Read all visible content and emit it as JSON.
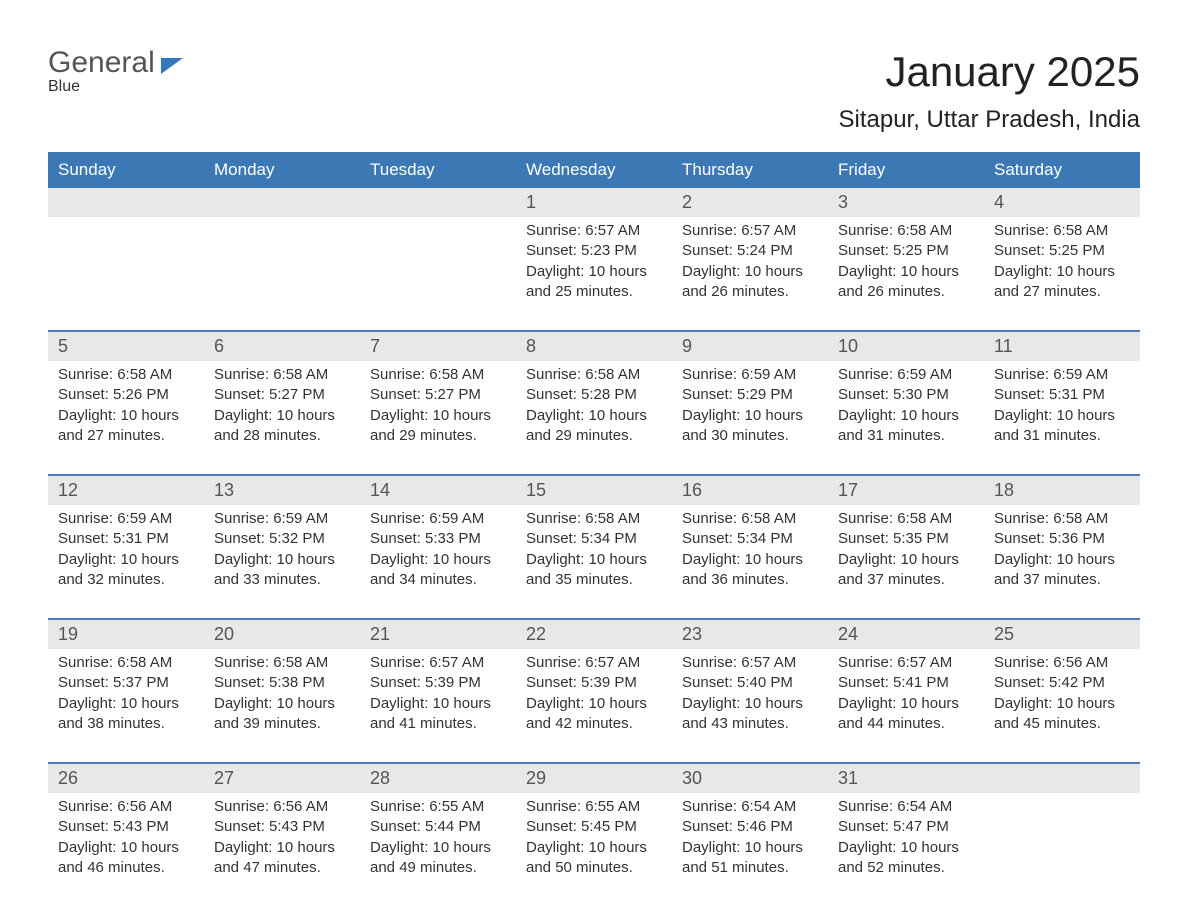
{
  "branding": {
    "logo_word1": "General",
    "logo_word2": "Blue"
  },
  "header": {
    "month_title": "January 2025",
    "location": "Sitapur, Uttar Pradesh, India"
  },
  "colors": {
    "brand_blue": "#3478bd",
    "header_blue": "#3c78b4",
    "divider_blue": "#4a7db8",
    "light_grey": "#e8e8e8",
    "text_dark": "#333333",
    "white": "#ffffff"
  },
  "calendar": {
    "type": "calendar-table",
    "columns": 7,
    "weekdays": [
      "Sunday",
      "Monday",
      "Tuesday",
      "Wednesday",
      "Thursday",
      "Friday",
      "Saturday"
    ],
    "weeks": [
      {
        "days": [
          {
            "num": "",
            "sunrise": "",
            "sunset": "",
            "daylight1": "",
            "daylight2": ""
          },
          {
            "num": "",
            "sunrise": "",
            "sunset": "",
            "daylight1": "",
            "daylight2": ""
          },
          {
            "num": "",
            "sunrise": "",
            "sunset": "",
            "daylight1": "",
            "daylight2": ""
          },
          {
            "num": "1",
            "sunrise": "Sunrise: 6:57 AM",
            "sunset": "Sunset: 5:23 PM",
            "daylight1": "Daylight: 10 hours",
            "daylight2": "and 25 minutes."
          },
          {
            "num": "2",
            "sunrise": "Sunrise: 6:57 AM",
            "sunset": "Sunset: 5:24 PM",
            "daylight1": "Daylight: 10 hours",
            "daylight2": "and 26 minutes."
          },
          {
            "num": "3",
            "sunrise": "Sunrise: 6:58 AM",
            "sunset": "Sunset: 5:25 PM",
            "daylight1": "Daylight: 10 hours",
            "daylight2": "and 26 minutes."
          },
          {
            "num": "4",
            "sunrise": "Sunrise: 6:58 AM",
            "sunset": "Sunset: 5:25 PM",
            "daylight1": "Daylight: 10 hours",
            "daylight2": "and 27 minutes."
          }
        ]
      },
      {
        "days": [
          {
            "num": "5",
            "sunrise": "Sunrise: 6:58 AM",
            "sunset": "Sunset: 5:26 PM",
            "daylight1": "Daylight: 10 hours",
            "daylight2": "and 27 minutes."
          },
          {
            "num": "6",
            "sunrise": "Sunrise: 6:58 AM",
            "sunset": "Sunset: 5:27 PM",
            "daylight1": "Daylight: 10 hours",
            "daylight2": "and 28 minutes."
          },
          {
            "num": "7",
            "sunrise": "Sunrise: 6:58 AM",
            "sunset": "Sunset: 5:27 PM",
            "daylight1": "Daylight: 10 hours",
            "daylight2": "and 29 minutes."
          },
          {
            "num": "8",
            "sunrise": "Sunrise: 6:58 AM",
            "sunset": "Sunset: 5:28 PM",
            "daylight1": "Daylight: 10 hours",
            "daylight2": "and 29 minutes."
          },
          {
            "num": "9",
            "sunrise": "Sunrise: 6:59 AM",
            "sunset": "Sunset: 5:29 PM",
            "daylight1": "Daylight: 10 hours",
            "daylight2": "and 30 minutes."
          },
          {
            "num": "10",
            "sunrise": "Sunrise: 6:59 AM",
            "sunset": "Sunset: 5:30 PM",
            "daylight1": "Daylight: 10 hours",
            "daylight2": "and 31 minutes."
          },
          {
            "num": "11",
            "sunrise": "Sunrise: 6:59 AM",
            "sunset": "Sunset: 5:31 PM",
            "daylight1": "Daylight: 10 hours",
            "daylight2": "and 31 minutes."
          }
        ]
      },
      {
        "days": [
          {
            "num": "12",
            "sunrise": "Sunrise: 6:59 AM",
            "sunset": "Sunset: 5:31 PM",
            "daylight1": "Daylight: 10 hours",
            "daylight2": "and 32 minutes."
          },
          {
            "num": "13",
            "sunrise": "Sunrise: 6:59 AM",
            "sunset": "Sunset: 5:32 PM",
            "daylight1": "Daylight: 10 hours",
            "daylight2": "and 33 minutes."
          },
          {
            "num": "14",
            "sunrise": "Sunrise: 6:59 AM",
            "sunset": "Sunset: 5:33 PM",
            "daylight1": "Daylight: 10 hours",
            "daylight2": "and 34 minutes."
          },
          {
            "num": "15",
            "sunrise": "Sunrise: 6:58 AM",
            "sunset": "Sunset: 5:34 PM",
            "daylight1": "Daylight: 10 hours",
            "daylight2": "and 35 minutes."
          },
          {
            "num": "16",
            "sunrise": "Sunrise: 6:58 AM",
            "sunset": "Sunset: 5:34 PM",
            "daylight1": "Daylight: 10 hours",
            "daylight2": "and 36 minutes."
          },
          {
            "num": "17",
            "sunrise": "Sunrise: 6:58 AM",
            "sunset": "Sunset: 5:35 PM",
            "daylight1": "Daylight: 10 hours",
            "daylight2": "and 37 minutes."
          },
          {
            "num": "18",
            "sunrise": "Sunrise: 6:58 AM",
            "sunset": "Sunset: 5:36 PM",
            "daylight1": "Daylight: 10 hours",
            "daylight2": "and 37 minutes."
          }
        ]
      },
      {
        "days": [
          {
            "num": "19",
            "sunrise": "Sunrise: 6:58 AM",
            "sunset": "Sunset: 5:37 PM",
            "daylight1": "Daylight: 10 hours",
            "daylight2": "and 38 minutes."
          },
          {
            "num": "20",
            "sunrise": "Sunrise: 6:58 AM",
            "sunset": "Sunset: 5:38 PM",
            "daylight1": "Daylight: 10 hours",
            "daylight2": "and 39 minutes."
          },
          {
            "num": "21",
            "sunrise": "Sunrise: 6:57 AM",
            "sunset": "Sunset: 5:39 PM",
            "daylight1": "Daylight: 10 hours",
            "daylight2": "and 41 minutes."
          },
          {
            "num": "22",
            "sunrise": "Sunrise: 6:57 AM",
            "sunset": "Sunset: 5:39 PM",
            "daylight1": "Daylight: 10 hours",
            "daylight2": "and 42 minutes."
          },
          {
            "num": "23",
            "sunrise": "Sunrise: 6:57 AM",
            "sunset": "Sunset: 5:40 PM",
            "daylight1": "Daylight: 10 hours",
            "daylight2": "and 43 minutes."
          },
          {
            "num": "24",
            "sunrise": "Sunrise: 6:57 AM",
            "sunset": "Sunset: 5:41 PM",
            "daylight1": "Daylight: 10 hours",
            "daylight2": "and 44 minutes."
          },
          {
            "num": "25",
            "sunrise": "Sunrise: 6:56 AM",
            "sunset": "Sunset: 5:42 PM",
            "daylight1": "Daylight: 10 hours",
            "daylight2": "and 45 minutes."
          }
        ]
      },
      {
        "days": [
          {
            "num": "26",
            "sunrise": "Sunrise: 6:56 AM",
            "sunset": "Sunset: 5:43 PM",
            "daylight1": "Daylight: 10 hours",
            "daylight2": "and 46 minutes."
          },
          {
            "num": "27",
            "sunrise": "Sunrise: 6:56 AM",
            "sunset": "Sunset: 5:43 PM",
            "daylight1": "Daylight: 10 hours",
            "daylight2": "and 47 minutes."
          },
          {
            "num": "28",
            "sunrise": "Sunrise: 6:55 AM",
            "sunset": "Sunset: 5:44 PM",
            "daylight1": "Daylight: 10 hours",
            "daylight2": "and 49 minutes."
          },
          {
            "num": "29",
            "sunrise": "Sunrise: 6:55 AM",
            "sunset": "Sunset: 5:45 PM",
            "daylight1": "Daylight: 10 hours",
            "daylight2": "and 50 minutes."
          },
          {
            "num": "30",
            "sunrise": "Sunrise: 6:54 AM",
            "sunset": "Sunset: 5:46 PM",
            "daylight1": "Daylight: 10 hours",
            "daylight2": "and 51 minutes."
          },
          {
            "num": "31",
            "sunrise": "Sunrise: 6:54 AM",
            "sunset": "Sunset: 5:47 PM",
            "daylight1": "Daylight: 10 hours",
            "daylight2": "and 52 minutes."
          },
          {
            "num": "",
            "sunrise": "",
            "sunset": "",
            "daylight1": "",
            "daylight2": ""
          }
        ]
      }
    ]
  }
}
